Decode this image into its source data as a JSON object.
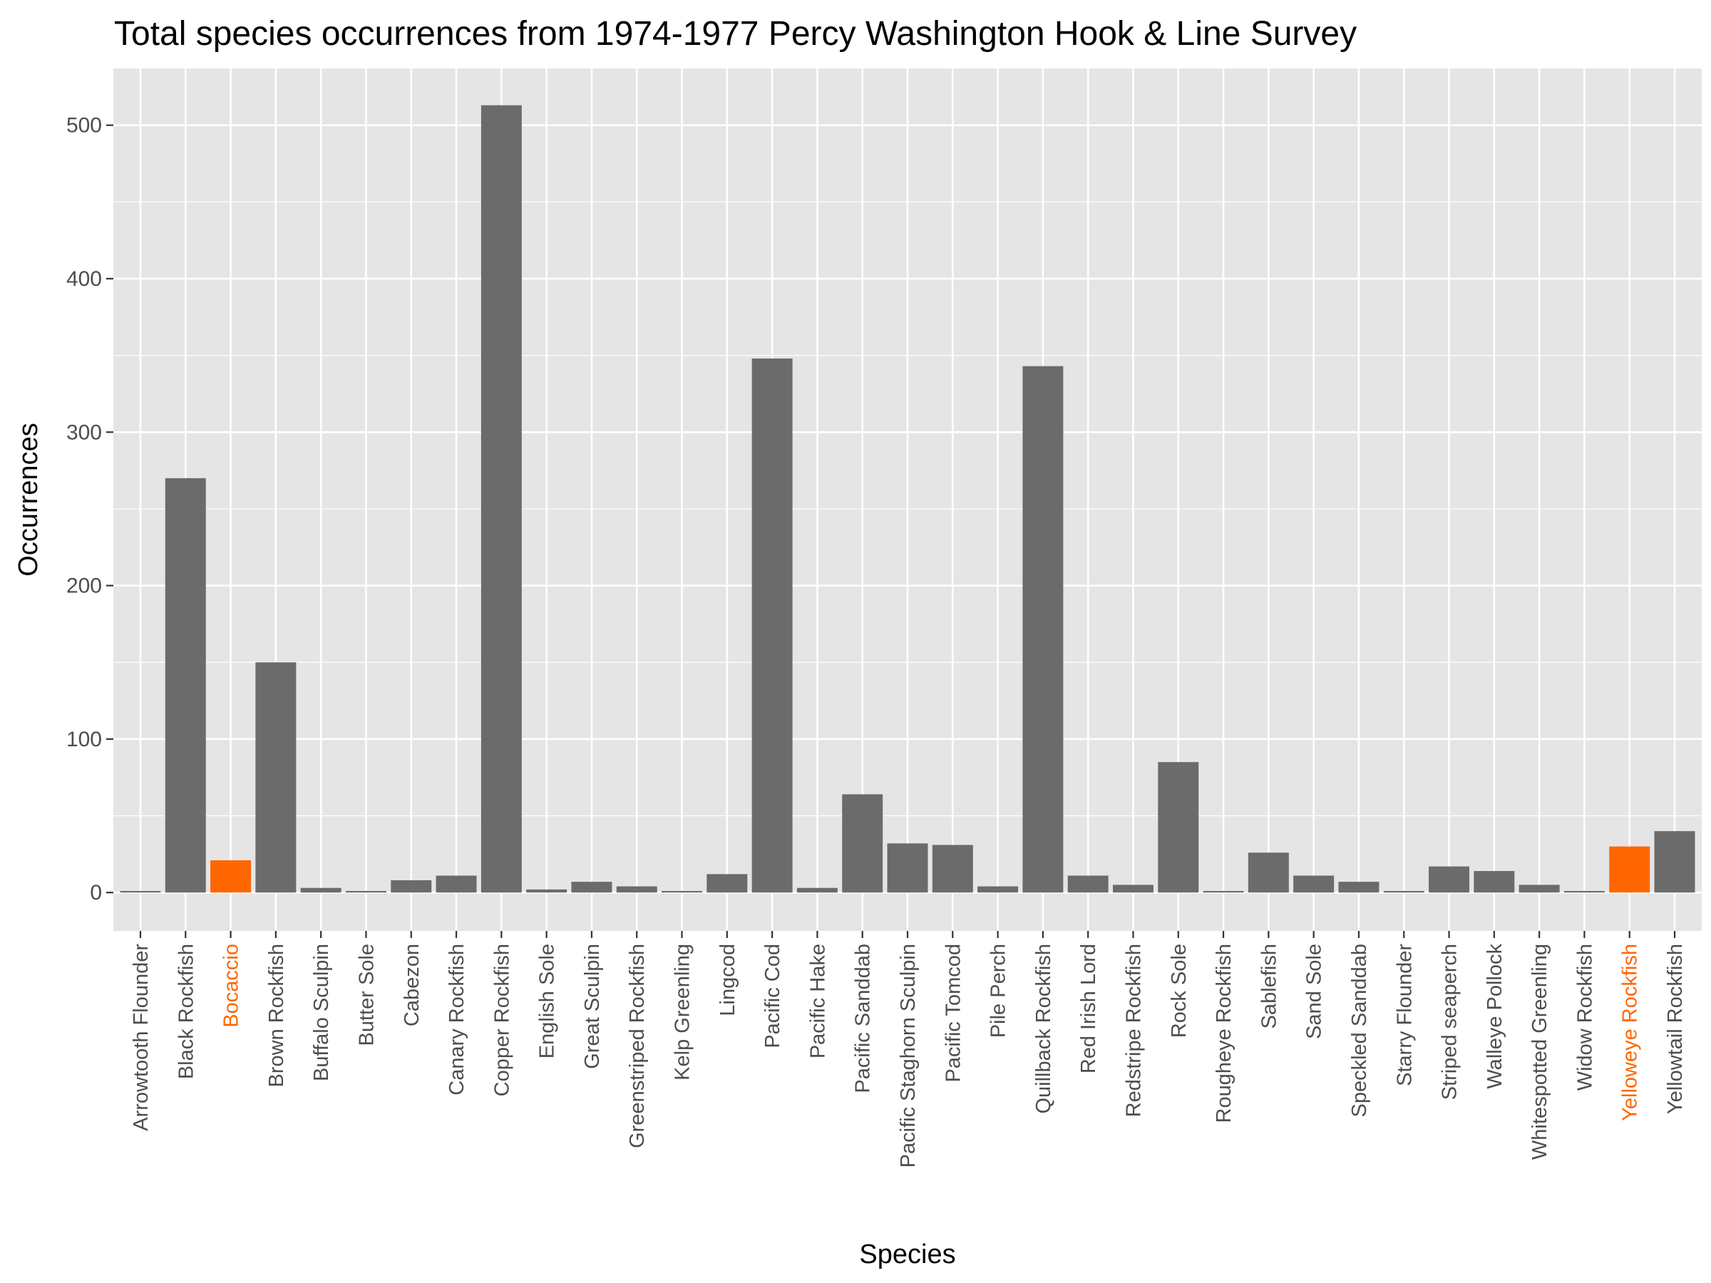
{
  "chart_data": {
    "type": "bar",
    "title": "Total species occurrences from 1974-1977 Percy Washington Hook & Line Survey",
    "xlabel": "Species",
    "ylabel": "Occurrences",
    "ylim": [
      -25,
      537
    ],
    "yticks": [
      0,
      100,
      200,
      300,
      400,
      500
    ],
    "grid": true,
    "legend": "none",
    "colors": {
      "default": "#6b6b6b",
      "highlight": "#ff6600",
      "panel": "#e5e5e5",
      "grid": "#ffffff"
    },
    "categories": [
      "Arrowtooth Flounder",
      "Black Rockfish",
      "Bocaccio",
      "Brown Rockfish",
      "Buffalo Sculpin",
      "Butter Sole",
      "Cabezon",
      "Canary Rockfish",
      "Copper Rockfish",
      "English Sole",
      "Great Sculpin",
      "Greenstriped Rockfish",
      "Kelp Greenling",
      "Lingcod",
      "Pacific Cod",
      "Pacific Hake",
      "Pacific Sanddab",
      "Pacific Staghorn Sculpin",
      "Pacific Tomcod",
      "Pile Perch",
      "Quillback Rockfish",
      "Red Irish Lord",
      "Redstripe Rockfish",
      "Rock Sole",
      "Rougheye Rockfish",
      "Sablefish",
      "Sand Sole",
      "Speckled Sanddab",
      "Starry Flounder",
      "Striped seaperch",
      "Walleye Pollock",
      "Whitespotted Greenling",
      "Widow Rockfish",
      "Yelloweye Rockfish",
      "Yellowtail Rockfish"
    ],
    "values": [
      1,
      270,
      21,
      150,
      3,
      1,
      8,
      11,
      513,
      2,
      7,
      4,
      1,
      12,
      348,
      3,
      64,
      32,
      31,
      4,
      343,
      11,
      5,
      85,
      1,
      26,
      11,
      7,
      1,
      17,
      14,
      5,
      1,
      30,
      40
    ],
    "highlighted": [
      "Bocaccio",
      "Yelloweye Rockfish"
    ]
  }
}
